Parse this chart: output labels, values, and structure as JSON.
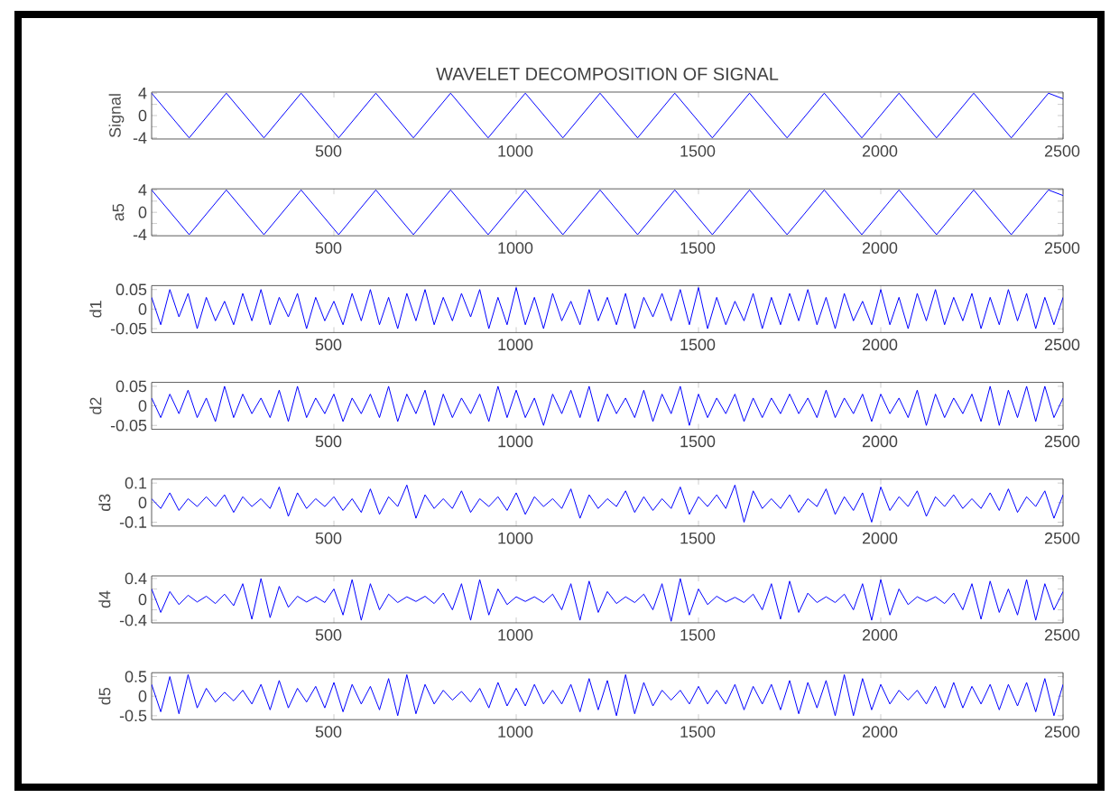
{
  "chart_data": [
    {
      "type": "line",
      "title": "WAVELET DECOMPOSITION OF SIGNAL",
      "ylabel": "Signal",
      "color": "#0000ff",
      "xlim": [
        0,
        2500
      ],
      "xticks": [
        500,
        1000,
        1500,
        2000,
        2500
      ],
      "ylim": [
        -4.2,
        4.2
      ],
      "yticks": [
        -4,
        {
          "value": -2,
          "label": null
        },
        0,
        {
          "value": 2,
          "label": null
        },
        4
      ],
      "x": [
        0,
        103,
        205,
        308,
        410,
        513,
        615,
        718,
        820,
        923,
        1025,
        1128,
        1230,
        1333,
        1435,
        1538,
        1640,
        1743,
        1845,
        1948,
        2050,
        2153,
        2255,
        2358,
        2460,
        2500
      ],
      "values": [
        4,
        -4,
        4,
        -4,
        4,
        -4,
        4,
        -4,
        4,
        -4,
        4,
        -4,
        4,
        -4,
        4,
        -4,
        4,
        -4,
        4,
        -4,
        4,
        -4,
        4,
        -4,
        4,
        3
      ]
    },
    {
      "type": "line",
      "ylabel": "a5",
      "color": "#0000ff",
      "xlim": [
        0,
        2500
      ],
      "xticks": [
        500,
        1000,
        1500,
        2000,
        2500
      ],
      "ylim": [
        -4.2,
        4.2
      ],
      "yticks": [
        -4,
        {
          "value": -2,
          "label": null
        },
        0,
        {
          "value": 2,
          "label": null
        },
        4
      ],
      "x": [
        0,
        103,
        205,
        308,
        410,
        513,
        615,
        718,
        820,
        923,
        1025,
        1128,
        1230,
        1333,
        1435,
        1538,
        1640,
        1743,
        1845,
        1948,
        2050,
        2153,
        2255,
        2358,
        2460,
        2500
      ],
      "values": [
        4,
        -4,
        4,
        -4,
        4,
        -4,
        4,
        -4,
        4,
        -4,
        4,
        -4,
        4,
        -4,
        4,
        -4,
        4,
        -4,
        4,
        -4,
        4,
        -4,
        4,
        -4,
        4,
        3
      ]
    },
    {
      "type": "line",
      "ylabel": "d1",
      "color": "#0000ff",
      "xlim": [
        0,
        2500
      ],
      "xticks": [
        500,
        1000,
        1500,
        2000,
        2500
      ],
      "ylim": [
        -0.06,
        0.06
      ],
      "yticks": [
        -0.05,
        0,
        0.05
      ],
      "x": [
        0,
        25,
        50,
        75,
        100,
        125,
        150,
        175,
        200,
        225,
        250,
        275,
        300,
        325,
        350,
        375,
        400,
        425,
        450,
        475,
        500,
        525,
        550,
        575,
        600,
        625,
        650,
        675,
        700,
        725,
        750,
        775,
        800,
        825,
        850,
        875,
        900,
        925,
        950,
        975,
        1000,
        1025,
        1050,
        1075,
        1100,
        1125,
        1150,
        1175,
        1200,
        1225,
        1250,
        1275,
        1300,
        1325,
        1350,
        1375,
        1400,
        1425,
        1450,
        1475,
        1500,
        1525,
        1550,
        1575,
        1600,
        1625,
        1650,
        1675,
        1700,
        1725,
        1750,
        1775,
        1800,
        1825,
        1850,
        1875,
        1900,
        1925,
        1950,
        1975,
        2000,
        2025,
        2050,
        2075,
        2100,
        2125,
        2150,
        2175,
        2200,
        2225,
        2250,
        2275,
        2300,
        2325,
        2350,
        2375,
        2400,
        2425,
        2450,
        2475,
        2500
      ],
      "values": [
        0.03,
        -0.04,
        0.05,
        -0.02,
        0.04,
        -0.05,
        0.03,
        -0.03,
        0.02,
        -0.04,
        0.04,
        -0.03,
        0.05,
        -0.04,
        0.03,
        -0.02,
        0.04,
        -0.05,
        0.03,
        -0.03,
        0.02,
        -0.04,
        0.04,
        -0.03,
        0.05,
        -0.04,
        0.03,
        -0.05,
        0.04,
        -0.03,
        0.05,
        -0.04,
        0.03,
        -0.03,
        0.04,
        -0.02,
        0.05,
        -0.05,
        0.03,
        -0.04,
        0.055,
        -0.04,
        0.03,
        -0.05,
        0.04,
        -0.03,
        0.02,
        -0.04,
        0.05,
        -0.03,
        0.03,
        -0.04,
        0.04,
        -0.05,
        0.03,
        -0.02,
        0.04,
        -0.03,
        0.05,
        -0.04,
        0.055,
        -0.05,
        0.03,
        -0.04,
        0.02,
        -0.03,
        0.04,
        -0.05,
        0.03,
        -0.04,
        0.04,
        -0.03,
        0.05,
        -0.04,
        0.03,
        -0.05,
        0.04,
        -0.03,
        0.02,
        -0.04,
        0.05,
        -0.04,
        0.03,
        -0.05,
        0.04,
        -0.03,
        0.05,
        -0.04,
        0.03,
        -0.03,
        0.04,
        -0.05,
        0.03,
        -0.04,
        0.05,
        -0.03,
        0.04,
        -0.05,
        0.03,
        -0.04,
        0.03
      ]
    },
    {
      "type": "line",
      "ylabel": "d2",
      "color": "#0000ff",
      "xlim": [
        0,
        2500
      ],
      "xticks": [
        500,
        1000,
        1500,
        2000,
        2500
      ],
      "ylim": [
        -0.06,
        0.06
      ],
      "yticks": [
        -0.05,
        0,
        0.05
      ],
      "x": [
        0,
        25,
        50,
        75,
        100,
        125,
        150,
        175,
        200,
        225,
        250,
        275,
        300,
        325,
        350,
        375,
        400,
        425,
        450,
        475,
        500,
        525,
        550,
        575,
        600,
        625,
        650,
        675,
        700,
        725,
        750,
        775,
        800,
        825,
        850,
        875,
        900,
        925,
        950,
        975,
        1000,
        1025,
        1050,
        1075,
        1100,
        1125,
        1150,
        1175,
        1200,
        1225,
        1250,
        1275,
        1300,
        1325,
        1350,
        1375,
        1400,
        1425,
        1450,
        1475,
        1500,
        1525,
        1550,
        1575,
        1600,
        1625,
        1650,
        1675,
        1700,
        1725,
        1750,
        1775,
        1800,
        1825,
        1850,
        1875,
        1900,
        1925,
        1950,
        1975,
        2000,
        2025,
        2050,
        2075,
        2100,
        2125,
        2150,
        2175,
        2200,
        2225,
        2250,
        2275,
        2300,
        2325,
        2350,
        2375,
        2400,
        2425,
        2450,
        2475,
        2500
      ],
      "values": [
        0.02,
        -0.03,
        0.03,
        -0.02,
        0.04,
        -0.03,
        0.02,
        -0.04,
        0.05,
        -0.03,
        0.03,
        -0.02,
        0.02,
        -0.03,
        0.04,
        -0.04,
        0.05,
        -0.03,
        0.02,
        -0.02,
        0.03,
        -0.04,
        0.02,
        -0.02,
        0.03,
        -0.03,
        0.05,
        -0.04,
        0.03,
        -0.02,
        0.04,
        -0.05,
        0.03,
        -0.03,
        0.02,
        -0.02,
        0.03,
        -0.04,
        0.05,
        -0.03,
        0.04,
        -0.03,
        0.02,
        -0.05,
        0.03,
        -0.02,
        0.04,
        -0.03,
        0.05,
        -0.04,
        0.03,
        -0.02,
        0.02,
        -0.03,
        0.04,
        -0.04,
        0.03,
        -0.02,
        0.05,
        -0.05,
        0.03,
        -0.03,
        0.02,
        -0.02,
        0.03,
        -0.04,
        0.02,
        -0.03,
        0.02,
        -0.02,
        0.03,
        -0.02,
        0.02,
        -0.03,
        0.04,
        -0.03,
        0.02,
        -0.02,
        0.03,
        -0.04,
        0.03,
        -0.02,
        0.02,
        -0.03,
        0.04,
        -0.05,
        0.03,
        -0.03,
        0.02,
        -0.02,
        0.03,
        -0.04,
        0.05,
        -0.05,
        0.04,
        -0.03,
        0.05,
        -0.04,
        0.05,
        -0.03,
        0.02
      ]
    },
    {
      "type": "line",
      "ylabel": "d3",
      "color": "#0000ff",
      "xlim": [
        0,
        2500
      ],
      "xticks": [
        500,
        1000,
        1500,
        2000,
        2500
      ],
      "ylim": [
        -0.12,
        0.12
      ],
      "yticks": [
        -0.1,
        0,
        0.1
      ],
      "x": [
        0,
        25,
        50,
        75,
        100,
        125,
        150,
        175,
        200,
        225,
        250,
        275,
        300,
        325,
        350,
        375,
        400,
        425,
        450,
        475,
        500,
        525,
        550,
        575,
        600,
        625,
        650,
        675,
        700,
        725,
        750,
        775,
        800,
        825,
        850,
        875,
        900,
        925,
        950,
        975,
        1000,
        1025,
        1050,
        1075,
        1100,
        1125,
        1150,
        1175,
        1200,
        1225,
        1250,
        1275,
        1300,
        1325,
        1350,
        1375,
        1400,
        1425,
        1450,
        1475,
        1500,
        1525,
        1550,
        1575,
        1600,
        1625,
        1650,
        1675,
        1700,
        1725,
        1750,
        1775,
        1800,
        1825,
        1850,
        1875,
        1900,
        1925,
        1950,
        1975,
        2000,
        2025,
        2050,
        2075,
        2100,
        2125,
        2150,
        2175,
        2200,
        2225,
        2250,
        2275,
        2300,
        2325,
        2350,
        2375,
        2400,
        2425,
        2450,
        2475,
        2500
      ],
      "values": [
        0.02,
        -0.03,
        0.05,
        -0.04,
        0.02,
        -0.02,
        0.03,
        -0.02,
        0.04,
        -0.05,
        0.03,
        -0.02,
        0.02,
        -0.03,
        0.08,
        -0.07,
        0.05,
        -0.03,
        0.02,
        -0.02,
        0.03,
        -0.04,
        0.02,
        -0.05,
        0.07,
        -0.06,
        0.03,
        -0.02,
        0.09,
        -0.08,
        0.04,
        -0.03,
        0.02,
        -0.03,
        0.06,
        -0.05,
        0.02,
        -0.02,
        0.03,
        -0.04,
        0.05,
        -0.06,
        0.03,
        -0.02,
        0.02,
        -0.03,
        0.07,
        -0.08,
        0.04,
        -0.03,
        0.02,
        -0.02,
        0.06,
        -0.05,
        0.03,
        -0.04,
        0.02,
        -0.03,
        0.08,
        -0.06,
        0.03,
        -0.02,
        0.04,
        -0.03,
        0.09,
        -0.1,
        0.06,
        -0.03,
        0.02,
        -0.03,
        0.04,
        -0.05,
        0.02,
        -0.02,
        0.07,
        -0.06,
        0.03,
        -0.04,
        0.05,
        -0.1,
        0.08,
        -0.04,
        0.03,
        -0.02,
        0.06,
        -0.07,
        0.03,
        -0.02,
        0.04,
        -0.03,
        0.02,
        -0.03,
        0.05,
        -0.04,
        0.07,
        -0.05,
        0.03,
        -0.02,
        0.06,
        -0.08,
        0.04
      ]
    },
    {
      "type": "line",
      "ylabel": "d4",
      "color": "#0000ff",
      "xlim": [
        0,
        2500
      ],
      "xticks": [
        500,
        1000,
        1500,
        2000,
        2500
      ],
      "ylim": [
        -0.45,
        0.45
      ],
      "yticks": [
        -0.4,
        {
          "value": -0.2,
          "label": null
        },
        0,
        {
          "value": 0.2,
          "label": null
        },
        0.4
      ],
      "x": [
        0,
        25,
        50,
        75,
        100,
        125,
        150,
        175,
        200,
        225,
        250,
        275,
        300,
        325,
        350,
        375,
        400,
        425,
        450,
        475,
        500,
        525,
        550,
        575,
        600,
        625,
        650,
        675,
        700,
        725,
        750,
        775,
        800,
        825,
        850,
        875,
        900,
        925,
        950,
        975,
        1000,
        1025,
        1050,
        1075,
        1100,
        1125,
        1150,
        1175,
        1200,
        1225,
        1250,
        1275,
        1300,
        1325,
        1350,
        1375,
        1400,
        1425,
        1450,
        1475,
        1500,
        1525,
        1550,
        1575,
        1600,
        1625,
        1650,
        1675,
        1700,
        1725,
        1750,
        1775,
        1800,
        1825,
        1850,
        1875,
        1900,
        1925,
        1950,
        1975,
        2000,
        2025,
        2050,
        2075,
        2100,
        2125,
        2150,
        2175,
        2200,
        2225,
        2250,
        2275,
        2300,
        2325,
        2350,
        2375,
        2400,
        2425,
        2450,
        2475,
        2500
      ],
      "values": [
        0.2,
        -0.25,
        0.15,
        -0.1,
        0.08,
        -0.05,
        0.06,
        -0.08,
        0.1,
        -0.12,
        0.3,
        -0.38,
        0.4,
        -0.35,
        0.25,
        -0.15,
        0.06,
        -0.05,
        0.05,
        -0.06,
        0.2,
        -0.3,
        0.38,
        -0.4,
        0.3,
        -0.2,
        0.1,
        -0.06,
        0.05,
        -0.04,
        0.06,
        -0.08,
        0.12,
        -0.2,
        0.3,
        -0.4,
        0.38,
        -0.3,
        0.2,
        -0.1,
        0.05,
        -0.04,
        0.05,
        -0.06,
        0.1,
        -0.2,
        0.3,
        -0.4,
        0.35,
        -0.25,
        0.15,
        -0.08,
        0.05,
        -0.06,
        0.1,
        -0.2,
        0.3,
        -0.42,
        0.4,
        -0.3,
        0.2,
        -0.1,
        0.06,
        -0.05,
        0.04,
        -0.06,
        0.1,
        -0.2,
        0.3,
        -0.38,
        0.35,
        -0.25,
        0.12,
        -0.06,
        0.05,
        -0.06,
        0.1,
        -0.2,
        0.3,
        -0.4,
        0.38,
        -0.3,
        0.2,
        -0.1,
        0.05,
        -0.04,
        0.05,
        -0.08,
        0.12,
        -0.2,
        0.3,
        -0.38,
        0.35,
        -0.25,
        0.2,
        -0.3,
        0.38,
        -0.4,
        0.3,
        -0.2,
        0.15
      ]
    },
    {
      "type": "line",
      "ylabel": "d5",
      "color": "#0000ff",
      "xlim": [
        0,
        2500
      ],
      "xticks": [
        500,
        1000,
        1500,
        2000,
        2500
      ],
      "ylim": [
        -0.6,
        0.6
      ],
      "yticks": [
        -0.5,
        0,
        0.5
      ],
      "x": [
        0,
        25,
        50,
        75,
        100,
        125,
        150,
        175,
        200,
        225,
        250,
        275,
        300,
        325,
        350,
        375,
        400,
        425,
        450,
        475,
        500,
        525,
        550,
        575,
        600,
        625,
        650,
        675,
        700,
        725,
        750,
        775,
        800,
        825,
        850,
        875,
        900,
        925,
        950,
        975,
        1000,
        1025,
        1050,
        1075,
        1100,
        1125,
        1150,
        1175,
        1200,
        1225,
        1250,
        1275,
        1300,
        1325,
        1350,
        1375,
        1400,
        1425,
        1450,
        1475,
        1500,
        1525,
        1550,
        1575,
        1600,
        1625,
        1650,
        1675,
        1700,
        1725,
        1750,
        1775,
        1800,
        1825,
        1850,
        1875,
        1900,
        1925,
        1950,
        1975,
        2000,
        2025,
        2050,
        2075,
        2100,
        2125,
        2150,
        2175,
        2200,
        2225,
        2250,
        2275,
        2300,
        2325,
        2350,
        2375,
        2400,
        2425,
        2450,
        2475,
        2500
      ],
      "values": [
        0.3,
        -0.4,
        0.5,
        -0.45,
        0.55,
        -0.3,
        0.2,
        -0.15,
        0.1,
        -0.12,
        0.15,
        -0.2,
        0.3,
        -0.35,
        0.4,
        -0.3,
        0.2,
        -0.15,
        0.25,
        -0.3,
        0.35,
        -0.4,
        0.3,
        -0.2,
        0.25,
        -0.35,
        0.45,
        -0.5,
        0.55,
        -0.45,
        0.3,
        -0.2,
        0.15,
        -0.1,
        0.12,
        -0.15,
        0.2,
        -0.3,
        0.35,
        -0.25,
        0.2,
        -0.25,
        0.3,
        -0.2,
        0.15,
        -0.2,
        0.3,
        -0.4,
        0.45,
        -0.35,
        0.4,
        -0.5,
        0.55,
        -0.45,
        0.35,
        -0.25,
        0.15,
        -0.1,
        0.15,
        -0.2,
        0.25,
        -0.2,
        0.15,
        -0.2,
        0.3,
        -0.35,
        0.25,
        -0.2,
        0.3,
        -0.35,
        0.4,
        -0.45,
        0.35,
        -0.3,
        0.4,
        -0.5,
        0.55,
        -0.5,
        0.45,
        -0.35,
        0.3,
        -0.2,
        0.15,
        -0.1,
        0.15,
        -0.2,
        0.25,
        -0.3,
        0.35,
        -0.3,
        0.25,
        -0.2,
        0.3,
        -0.35,
        0.3,
        -0.25,
        0.35,
        -0.4,
        0.45,
        -0.5,
        0.3
      ]
    }
  ]
}
